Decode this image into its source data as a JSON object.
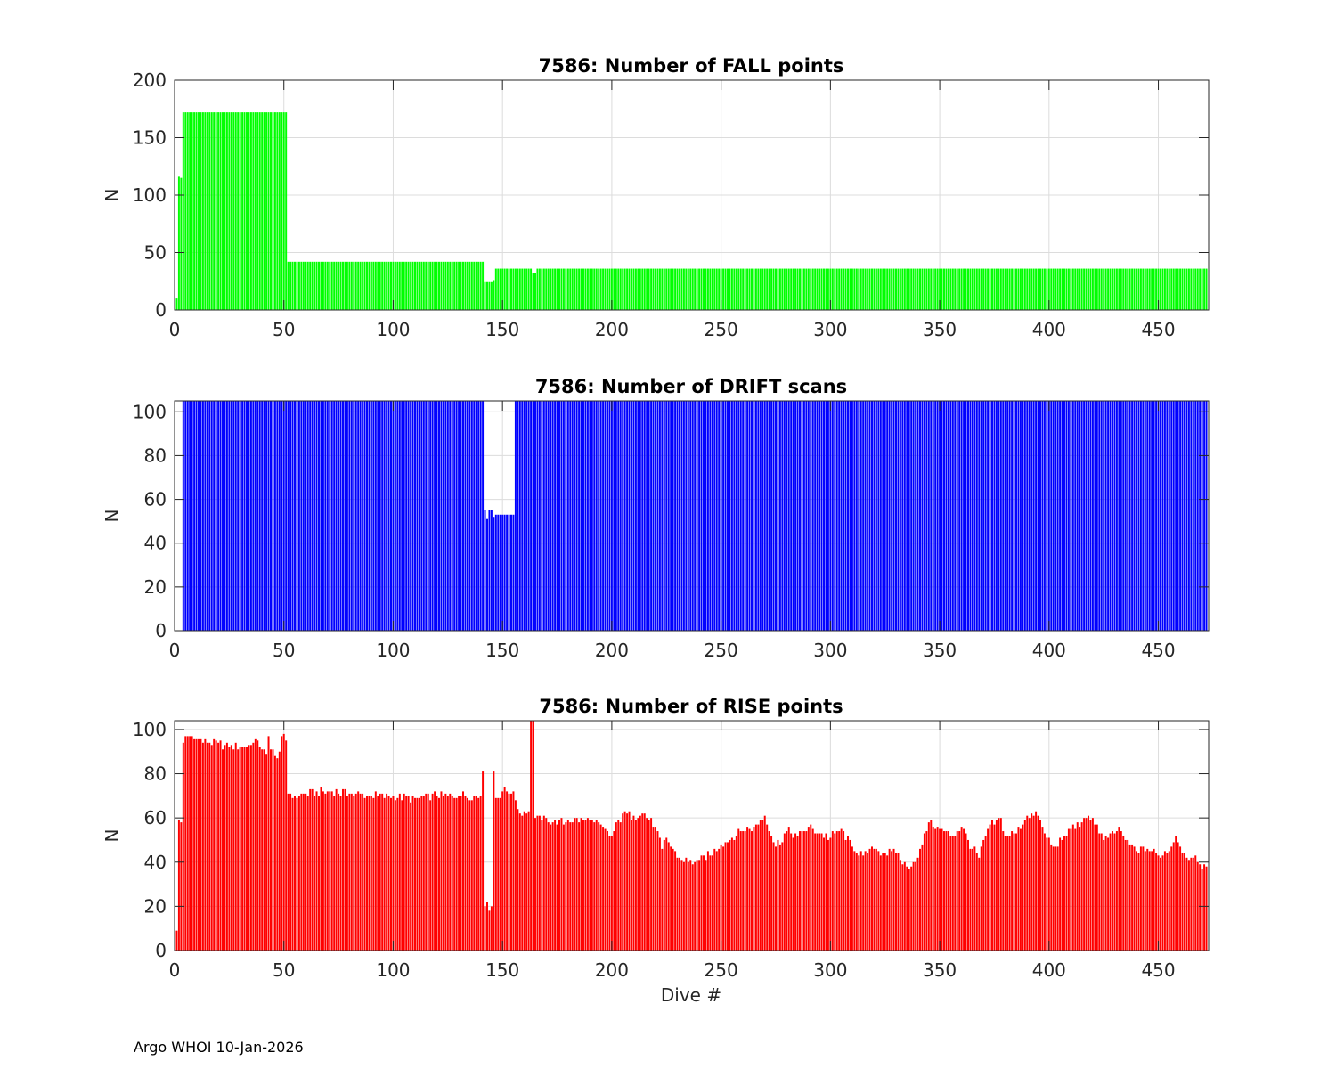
{
  "figure": {
    "footer": "Argo WHOI 10-Jan-2026",
    "colors": {
      "axis": "#262626",
      "grid": "#dcdcdc",
      "background": "#ffffff"
    }
  },
  "chart_data": [
    {
      "type": "bar",
      "title": "7586: Number of FALL points",
      "xlabel": "",
      "ylabel": "N",
      "xlim": [
        0,
        473
      ],
      "ylim": [
        0,
        200
      ],
      "xticks": [
        0,
        50,
        100,
        150,
        200,
        250,
        300,
        350,
        400,
        450
      ],
      "yticks": [
        0,
        50,
        100,
        150,
        200
      ],
      "grid": true,
      "color": "#00ff00",
      "series": [
        {
          "segments": [
            {
              "from": 1,
              "to": 1,
              "value": 10
            },
            {
              "from": 2,
              "to": 2,
              "value": 116
            },
            {
              "from": 3,
              "to": 3,
              "value": 115
            },
            {
              "from": 4,
              "to": 51,
              "value": 172
            },
            {
              "from": 52,
              "to": 141,
              "value": 42
            },
            {
              "from": 142,
              "to": 145,
              "value": 25
            },
            {
              "from": 146,
              "to": 146,
              "value": 26
            },
            {
              "from": 147,
              "to": 163,
              "value": 36
            },
            {
              "from": 164,
              "to": 165,
              "value": 32
            },
            {
              "from": 166,
              "to": 472,
              "value": 36
            }
          ]
        }
      ]
    },
    {
      "type": "bar",
      "title": "7586: Number of DRIFT scans",
      "xlabel": "",
      "ylabel": "N",
      "xlim": [
        0,
        473
      ],
      "ylim": [
        0,
        105
      ],
      "xticks": [
        0,
        50,
        100,
        150,
        200,
        250,
        300,
        350,
        400,
        450
      ],
      "yticks": [
        0,
        20,
        40,
        60,
        80,
        100
      ],
      "grid": true,
      "color": "#0000ff",
      "series": [
        {
          "segments": [
            {
              "from": 1,
              "to": 3,
              "value": 0
            },
            {
              "from": 4,
              "to": 141,
              "value": 105
            },
            {
              "from": 142,
              "to": 142,
              "value": 55
            },
            {
              "from": 143,
              "to": 143,
              "value": 51
            },
            {
              "from": 144,
              "to": 145,
              "value": 55
            },
            {
              "from": 146,
              "to": 146,
              "value": 52
            },
            {
              "from": 147,
              "to": 155,
              "value": 53
            },
            {
              "from": 156,
              "to": 472,
              "value": 105
            }
          ]
        }
      ]
    },
    {
      "type": "bar",
      "title": "7586: Number of RISE points",
      "xlabel": "Dive #",
      "ylabel": "N",
      "xlim": [
        0,
        473
      ],
      "ylim": [
        0,
        104
      ],
      "xticks": [
        0,
        50,
        100,
        150,
        200,
        250,
        300,
        350,
        400,
        450
      ],
      "yticks": [
        0,
        20,
        40,
        60,
        80,
        100
      ],
      "grid": true,
      "color": "#ff0000",
      "series": [
        {
          "points": [
            [
              1,
              9
            ],
            [
              2,
              59
            ],
            [
              3,
              58
            ],
            [
              4,
              94
            ],
            [
              6,
              97
            ],
            [
              10,
              96
            ],
            [
              15,
              94
            ],
            [
              20,
              94
            ],
            [
              25,
              92
            ],
            [
              30,
              92
            ],
            [
              35,
              93
            ],
            [
              38,
              95
            ],
            [
              40,
              91
            ],
            [
              42,
              89
            ],
            [
              43,
              97
            ],
            [
              44,
              91
            ],
            [
              46,
              88
            ],
            [
              48,
              90
            ],
            [
              49,
              97
            ],
            [
              51,
              95
            ],
            [
              52,
              71
            ],
            [
              55,
              70
            ],
            [
              60,
              71
            ],
            [
              70,
              72
            ],
            [
              80,
              71
            ],
            [
              90,
              70
            ],
            [
              100,
              70
            ],
            [
              110,
              69
            ],
            [
              120,
              70
            ],
            [
              130,
              70
            ],
            [
              140,
              70
            ],
            [
              141,
              81
            ],
            [
              142,
              20
            ],
            [
              145,
              20
            ],
            [
              146,
              81
            ],
            [
              147,
              69
            ],
            [
              150,
              72
            ],
            [
              155,
              72
            ],
            [
              158,
              62
            ],
            [
              162,
              63
            ],
            [
              163,
              104
            ],
            [
              164,
              104
            ],
            [
              165,
              60
            ],
            [
              168,
              59
            ],
            [
              170,
              60
            ],
            [
              175,
              57
            ],
            [
              180,
              59
            ],
            [
              190,
              59
            ],
            [
              200,
              52
            ],
            [
              205,
              62
            ],
            [
              210,
              61
            ],
            [
              215,
              62
            ],
            [
              220,
              56
            ],
            [
              223,
              46
            ],
            [
              225,
              51
            ],
            [
              230,
              42
            ],
            [
              235,
              40
            ],
            [
              240,
              41
            ],
            [
              245,
              43
            ],
            [
              250,
              48
            ],
            [
              255,
              51
            ],
            [
              260,
              54
            ],
            [
              265,
              56
            ],
            [
              270,
              61
            ],
            [
              275,
              47
            ],
            [
              280,
              54
            ],
            [
              285,
              52
            ],
            [
              290,
              56
            ],
            [
              295,
              53
            ],
            [
              300,
              51
            ],
            [
              305,
              55
            ],
            [
              310,
              47
            ],
            [
              315,
              43
            ],
            [
              320,
              46
            ],
            [
              325,
              44
            ],
            [
              330,
              44
            ],
            [
              335,
              38
            ],
            [
              340,
              42
            ],
            [
              345,
              58
            ],
            [
              350,
              55
            ],
            [
              355,
              52
            ],
            [
              360,
              56
            ],
            [
              365,
              46
            ],
            [
              368,
              42
            ],
            [
              372,
              55
            ],
            [
              378,
              60
            ],
            [
              380,
              52
            ],
            [
              385,
              53
            ],
            [
              390,
              61
            ],
            [
              395,
              61
            ],
            [
              398,
              53
            ],
            [
              402,
              47
            ],
            [
              406,
              50
            ],
            [
              410,
              55
            ],
            [
              415,
              58
            ],
            [
              420,
              60
            ],
            [
              425,
              50
            ],
            [
              430,
              53
            ],
            [
              432,
              56
            ],
            [
              435,
              50
            ],
            [
              440,
              45
            ],
            [
              445,
              46
            ],
            [
              450,
              43
            ],
            [
              455,
              45
            ],
            [
              458,
              52
            ],
            [
              462,
              44
            ],
            [
              465,
              42
            ],
            [
              468,
              40
            ],
            [
              472,
              38
            ]
          ],
          "jitter": 2
        }
      ]
    }
  ]
}
